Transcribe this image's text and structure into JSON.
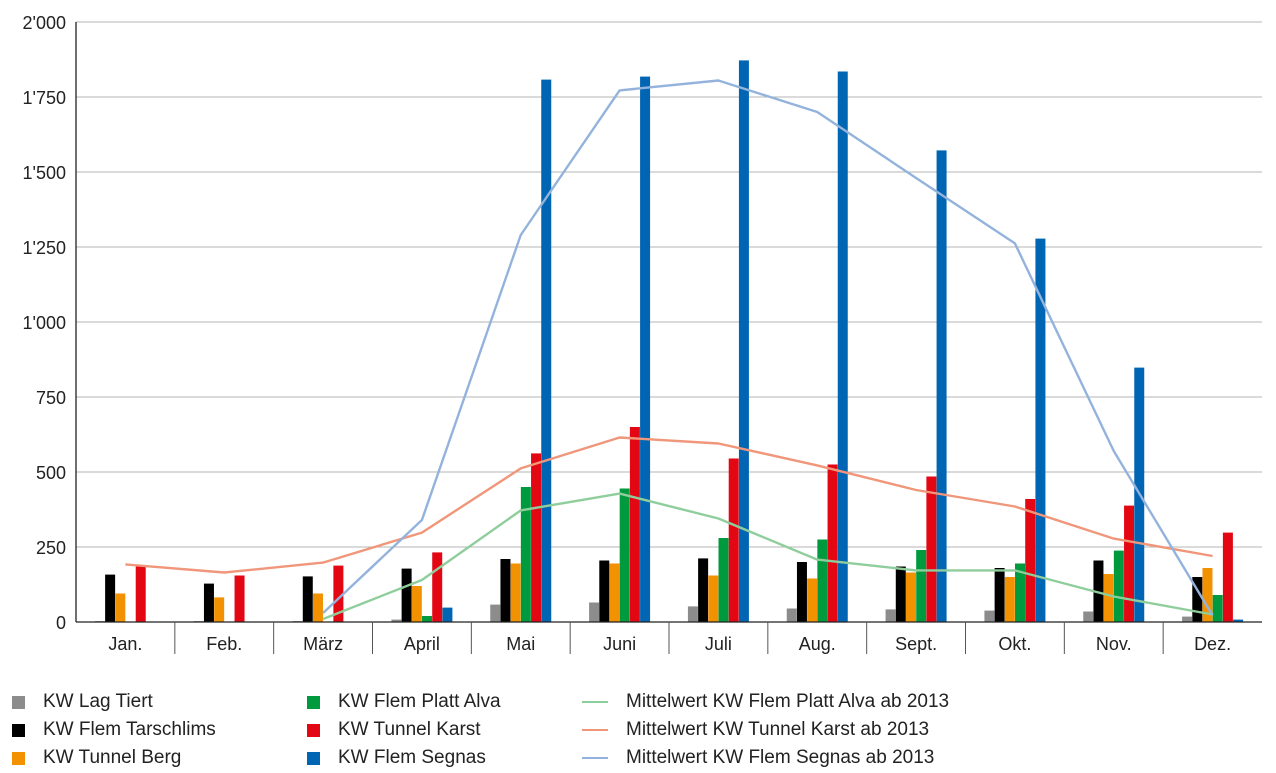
{
  "chart_data": {
    "type": "bar",
    "categories": [
      "Jan.",
      "Feb.",
      "März",
      "April",
      "Mai",
      "Juni",
      "Juli",
      "Aug.",
      "Sept.",
      "Okt.",
      "Nov.",
      "Dez."
    ],
    "ylim": [
      0,
      2000
    ],
    "yticks": [
      0,
      250,
      500,
      750,
      1000,
      1250,
      1500,
      1750,
      2000
    ],
    "ytick_labels": [
      "0",
      "250",
      "500",
      "750",
      "1'000",
      "1'250",
      "1'500",
      "1'750",
      "2'000"
    ],
    "grid": true,
    "legend_position": "bottom",
    "bar_series": [
      {
        "name": "KW Lag Tiert",
        "color": "#8c8c8c",
        "values": [
          3,
          3,
          3,
          8,
          58,
          65,
          52,
          45,
          42,
          38,
          35,
          18
        ]
      },
      {
        "name": "KW Flem Tarschlims",
        "color": "#000000",
        "values": [
          158,
          128,
          152,
          178,
          210,
          205,
          212,
          200,
          185,
          180,
          205,
          150
        ]
      },
      {
        "name": "KW Tunnel Berg",
        "color": "#f39200",
        "values": [
          95,
          82,
          95,
          120,
          195,
          195,
          155,
          145,
          165,
          150,
          160,
          180
        ]
      },
      {
        "name": "KW Flem Platt Alva",
        "color": "#009a3e",
        "values": [
          0,
          0,
          0,
          20,
          450,
          445,
          280,
          275,
          240,
          195,
          238,
          90
        ]
      },
      {
        "name": "KW Tunnel Karst",
        "color": "#e30613",
        "values": [
          185,
          155,
          188,
          232,
          562,
          650,
          545,
          525,
          485,
          410,
          388,
          298
        ]
      },
      {
        "name": "KW Flem Segnas",
        "color": "#0066b3",
        "values": [
          0,
          0,
          0,
          48,
          1808,
          1818,
          1872,
          1835,
          1572,
          1278,
          848,
          8
        ]
      }
    ],
    "line_series": [
      {
        "name": "Mittelwert KW Flem Platt Alva ab 2013",
        "color": "#8fce9c",
        "values": [
          null,
          null,
          10,
          140,
          372,
          428,
          345,
          208,
          172,
          172,
          85,
          25
        ]
      },
      {
        "name": "Mittelwert KW Tunnel Karst ab 2013",
        "color": "#f0967a",
        "values": [
          192,
          165,
          198,
          298,
          512,
          615,
          595,
          522,
          440,
          385,
          278,
          220
        ]
      },
      {
        "name": "Mittelwert KW Flem Segnas ab 2013",
        "color": "#94b3dc",
        "values": [
          null,
          null,
          30,
          340,
          1290,
          1772,
          1805,
          1700,
          1480,
          1262,
          570,
          22
        ]
      }
    ]
  }
}
